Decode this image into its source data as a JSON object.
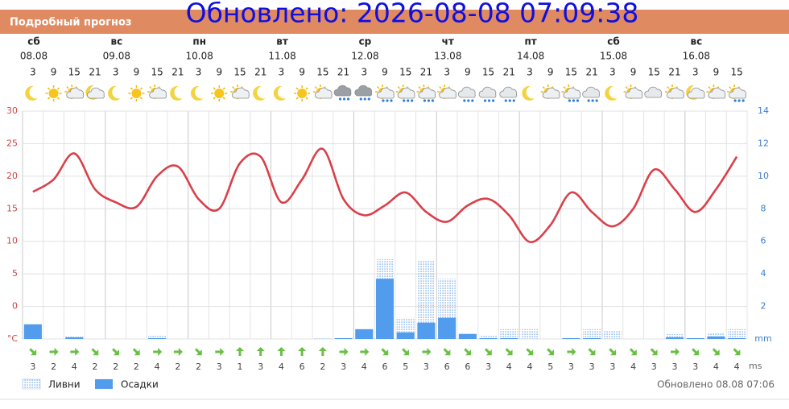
{
  "header": {
    "title": "Подробный прогноз",
    "overlay": "Обновлено: 2026-08-08 07:09:38"
  },
  "chart_data": {
    "type": "line",
    "days": [
      {
        "name": "сб",
        "date": "08.08"
      },
      {
        "name": "вс",
        "date": "09.08"
      },
      {
        "name": "пн",
        "date": "10.08"
      },
      {
        "name": "вт",
        "date": "11.08"
      },
      {
        "name": "ср",
        "date": "12.08"
      },
      {
        "name": "чт",
        "date": "13.08"
      },
      {
        "name": "пт",
        "date": "14.08"
      },
      {
        "name": "сб",
        "date": "15.08"
      },
      {
        "name": "вс",
        "date": "16.08"
      }
    ],
    "categories": [
      "3",
      "9",
      "15",
      "21",
      "3",
      "9",
      "15",
      "21",
      "3",
      "9",
      "15",
      "21",
      "3",
      "9",
      "15",
      "21",
      "3",
      "9",
      "15",
      "21",
      "3",
      "9",
      "15",
      "21",
      "3",
      "9",
      "15",
      "21",
      "3",
      "9",
      "15",
      "21",
      "3",
      "9",
      "15"
    ],
    "temperature": {
      "color": "#d9404a",
      "values": [
        17.6,
        19.5,
        23.5,
        18,
        16,
        15.3,
        20,
        21.5,
        16.5,
        15,
        22,
        23,
        16,
        19.5,
        24.2,
        16.5,
        14,
        15.5,
        17.5,
        14.5,
        13,
        15.5,
        16.5,
        14,
        9.9,
        12.5,
        17.5,
        14.5,
        12.3,
        15,
        21,
        18,
        14.5,
        18,
        23
      ]
    },
    "series": [
      {
        "name": "Ливни",
        "color": "#4a90e2",
        "axis": "y2",
        "values": [
          0,
          0,
          0.15,
          0,
          0,
          0,
          0.25,
          0,
          0,
          0,
          0,
          0,
          0,
          0,
          0.05,
          0.05,
          0,
          4.9,
          1.3,
          4.8,
          3.7,
          0.4,
          0.25,
          0.6,
          0.6,
          0,
          0.1,
          0.6,
          0.5,
          0,
          0,
          0.3,
          0.1,
          0.4,
          0.6
        ]
      },
      {
        "name": "Осадки",
        "color": "#529ced",
        "axis": "y2",
        "values": [
          0.9,
          0,
          0.1,
          0,
          0,
          0,
          0.05,
          0,
          0,
          0,
          0,
          0,
          0,
          0,
          0,
          0.05,
          0.6,
          3.7,
          0.4,
          1.0,
          1.3,
          0.3,
          0.05,
          0.05,
          0,
          0,
          0.05,
          0.05,
          0,
          0,
          0,
          0.1,
          0.05,
          0.15,
          0.05
        ]
      }
    ],
    "wind": {
      "unit": "ms",
      "color": "#6abf45",
      "values": [
        3,
        2,
        4,
        2,
        2,
        2,
        4,
        2,
        2,
        3,
        1,
        3,
        4,
        6,
        2,
        3,
        4,
        6,
        5,
        3,
        6,
        6,
        3,
        4,
        4,
        5,
        3,
        3,
        3,
        4,
        3,
        3,
        3,
        4,
        4
      ],
      "directions": [
        45,
        0,
        0,
        45,
        45,
        45,
        0,
        0,
        45,
        0,
        -90,
        -90,
        -90,
        -90,
        -90,
        0,
        0,
        45,
        45,
        0,
        45,
        45,
        45,
        45,
        45,
        45,
        0,
        45,
        45,
        45,
        45,
        0,
        45,
        45,
        45
      ]
    },
    "ylim": [
      -5,
      30
    ],
    "yticks": [
      {
        "value": -5,
        "label": "°C"
      },
      0,
      5,
      10,
      15,
      20,
      25,
      30
    ],
    "y2lim": [
      0,
      14
    ],
    "y2ticks": [
      {
        "value": 0,
        "label": "mm"
      },
      2,
      4,
      6,
      8,
      10,
      12,
      14
    ],
    "grid": true
  },
  "footer": {
    "updated": "Обновлено 08.08 07:06"
  }
}
